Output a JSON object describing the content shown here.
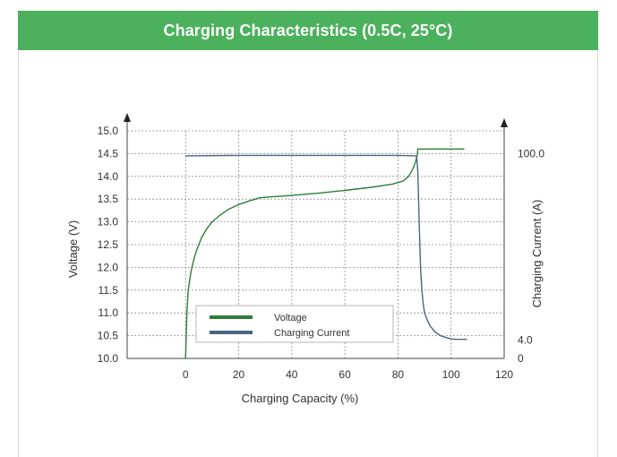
{
  "header": {
    "title": "Charging Characteristics (0.5C, 25°C)",
    "accent_color": "#4bb15c"
  },
  "chart_data": {
    "type": "line",
    "xlabel": "Charging Capacity (%)",
    "ylabel": "Voltage (V)",
    "y2label": "Charging Current (A)",
    "xlim": [
      -22,
      120
    ],
    "ylim": [
      10.0,
      15.0
    ],
    "x_ticks": [
      0,
      20,
      40,
      60,
      80,
      100,
      120
    ],
    "y_ticks": [
      10.0,
      10.5,
      11.0,
      11.5,
      12.0,
      12.5,
      13.0,
      13.5,
      14.0,
      14.5,
      15.0
    ],
    "y_tick_labels": [
      "10.0",
      "10.5",
      "11.0",
      "11.5",
      "12.0",
      "12.5",
      "13.0",
      "13.5",
      "14.0",
      "14.5",
      "15.0"
    ],
    "y2_ticks": [
      {
        "label": "100.0",
        "value": 100.0,
        "at_y": 14.5
      },
      {
        "label": "4.0",
        "value": 4.0,
        "at_y": 10.4
      },
      {
        "label": "0",
        "value": 0,
        "at_y": 10.0
      }
    ],
    "grid": true,
    "legend_position": "bottom-left",
    "series": [
      {
        "name": "Voltage",
        "color": "#2e7d3a",
        "x": [
          0,
          0.5,
          1,
          2,
          3,
          4,
          6,
          8,
          10,
          13,
          16,
          20,
          24,
          28,
          32,
          40,
          50,
          60,
          70,
          78,
          82,
          84,
          85.5,
          86.5,
          87.2,
          87.5,
          88,
          90,
          95,
          100,
          105
        ],
        "y": [
          10.0,
          11.0,
          11.5,
          11.9,
          12.15,
          12.35,
          12.65,
          12.85,
          13.0,
          13.15,
          13.27,
          13.38,
          13.46,
          13.53,
          13.55,
          13.58,
          13.63,
          13.69,
          13.76,
          13.83,
          13.9,
          14.0,
          14.15,
          14.3,
          14.45,
          14.6,
          14.6,
          14.6,
          14.6,
          14.6,
          14.6
        ]
      },
      {
        "name": "Charging Current",
        "color": "#4a6680",
        "x": [
          0,
          20,
          40,
          60,
          80,
          87,
          87.5,
          88,
          88.5,
          89,
          89.5,
          90,
          91,
          92,
          94,
          96,
          98,
          100,
          102,
          104,
          106
        ],
        "y": [
          14.45,
          14.46,
          14.46,
          14.46,
          14.46,
          14.45,
          14.1,
          13.0,
          12.0,
          11.5,
          11.2,
          11.0,
          10.85,
          10.72,
          10.58,
          10.5,
          10.46,
          10.43,
          10.42,
          10.42,
          10.42
        ]
      }
    ]
  }
}
